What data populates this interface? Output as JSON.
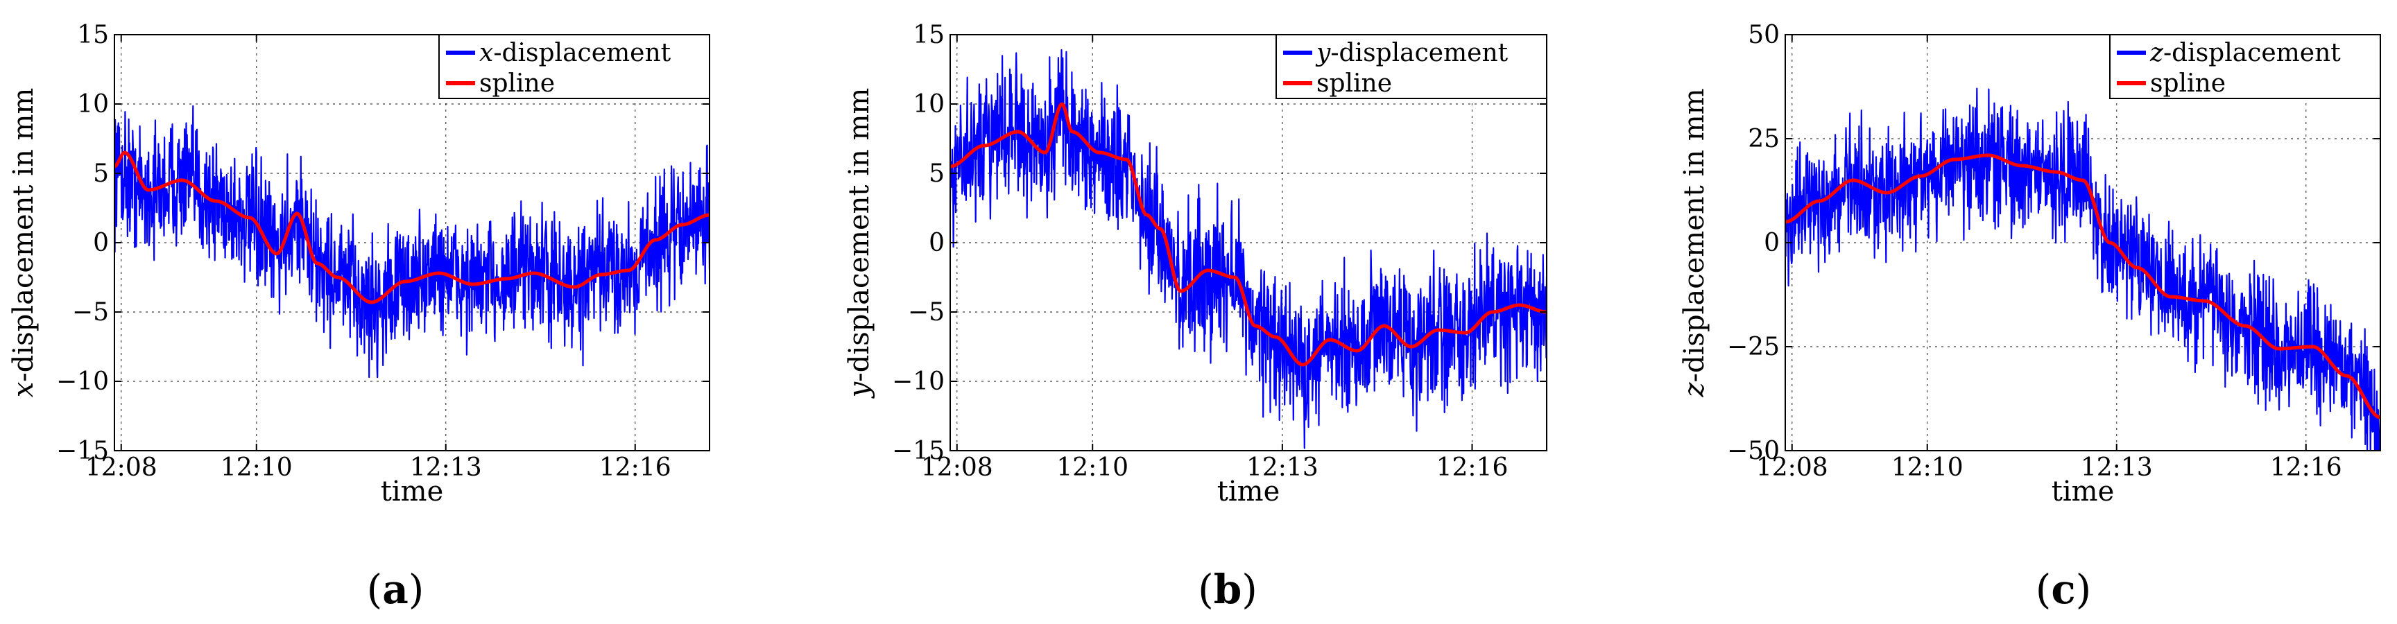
{
  "chart_data": [
    {
      "type": "line",
      "xlabel": "time",
      "ylabel": "x-displacement in mm",
      "ylabel_var": "x",
      "ylabel_rest": "-displacement in mm",
      "caption": "(a)",
      "caption_letter": "a",
      "x_ticks": [
        "12:08",
        "12:10",
        "12:13",
        "12:16"
      ],
      "x_tick_minutes": [
        0.1,
        2.1,
        4.9,
        7.7
      ],
      "xlim_minutes": [
        0,
        8.8
      ],
      "ylim": [
        -15,
        15
      ],
      "y_ticks": [
        15,
        10,
        5,
        0,
        -5,
        -10,
        -15
      ],
      "y_tick_labels": [
        "15",
        "10",
        "5",
        "0",
        "−5",
        "−10",
        "−15"
      ],
      "grid": true,
      "legend_position": "top-right",
      "series": [
        {
          "name": "x-displacement",
          "legend_var": "x",
          "legend_rest": "-displacement",
          "color": "#0000ff",
          "noise_amplitude": 2.2,
          "x_minutes": [
            0,
            0.5,
            1,
            1.5,
            2,
            2.4,
            2.7,
            3.0,
            3.3,
            3.8,
            4.3,
            4.8,
            5.3,
            5.8,
            6.2,
            6.8,
            7.2,
            7.6,
            8.0,
            8.4,
            8.8
          ],
          "values": [
            5.5,
            3.5,
            4.5,
            3,
            1.5,
            -0.5,
            2,
            -1.5,
            -2.5,
            -4.5,
            -3,
            -2,
            -3,
            -2.5,
            -2,
            -3.5,
            -2,
            -2,
            0,
            1,
            2
          ]
        },
        {
          "name": "spline",
          "color": "#ff0000",
          "x_minutes": [
            0,
            0.15,
            0.5,
            1,
            1.5,
            2,
            2.4,
            2.7,
            3.0,
            3.3,
            3.8,
            4.3,
            4.8,
            5.3,
            5.8,
            6.2,
            6.8,
            7.2,
            7.6,
            8.0,
            8.4,
            8.8
          ],
          "values": [
            5.5,
            6.5,
            3.8,
            4.5,
            3,
            1.8,
            -0.8,
            2.1,
            -1.5,
            -2.5,
            -4.3,
            -2.8,
            -2.2,
            -3,
            -2.6,
            -2.2,
            -3.2,
            -2.3,
            -2,
            0.2,
            1.3,
            2
          ]
        }
      ]
    },
    {
      "type": "line",
      "xlabel": "time",
      "ylabel": "y-displacement in mm",
      "ylabel_var": "y",
      "ylabel_rest": "-displacement in mm",
      "caption": "(b)",
      "caption_letter": "b",
      "x_ticks": [
        "12:08",
        "12:10",
        "12:13",
        "12:16"
      ],
      "x_tick_minutes": [
        0.1,
        2.1,
        4.9,
        7.7
      ],
      "xlim_minutes": [
        0,
        8.8
      ],
      "ylim": [
        -15,
        15
      ],
      "y_ticks": [
        15,
        10,
        5,
        0,
        -5,
        -10,
        -15
      ],
      "y_tick_labels": [
        "15",
        "10",
        "5",
        "0",
        "−5",
        "−10",
        "−15"
      ],
      "grid": true,
      "legend_position": "top-right",
      "series": [
        {
          "name": "y-displacement",
          "legend_var": "y",
          "legend_rest": "-displacement",
          "color": "#0000ff",
          "noise_amplitude": 2.4,
          "x_minutes": [
            0,
            0.5,
            1,
            1.4,
            1.6,
            1.8,
            2.2,
            2.6,
            2.9,
            3.1,
            3.4,
            3.8,
            4.2,
            4.5,
            4.8,
            5.2,
            5.6,
            6.0,
            6.4,
            6.8,
            7.2,
            7.6,
            8.0,
            8.4,
            8.8
          ],
          "values": [
            5.5,
            7,
            8,
            6.5,
            9.5,
            7.5,
            6.5,
            5.5,
            1.5,
            0.5,
            -3,
            -2,
            -2.5,
            -6,
            -7,
            -9,
            -7,
            -8,
            -6,
            -7.5,
            -6.5,
            -6.5,
            -5,
            -5,
            -5
          ]
        },
        {
          "name": "spline",
          "color": "#ff0000",
          "x_minutes": [
            0,
            0.5,
            1,
            1.4,
            1.65,
            1.8,
            2.2,
            2.6,
            2.9,
            3.1,
            3.4,
            3.8,
            4.2,
            4.5,
            4.8,
            5.2,
            5.6,
            6.0,
            6.4,
            6.8,
            7.2,
            7.6,
            8.0,
            8.4,
            8.8
          ],
          "values": [
            5.5,
            7,
            8,
            6.5,
            10,
            8,
            6.5,
            6,
            2,
            1,
            -3.5,
            -2,
            -2.5,
            -6,
            -6.8,
            -8.8,
            -7,
            -7.8,
            -6,
            -7.5,
            -6.3,
            -6.5,
            -5,
            -4.5,
            -5
          ]
        }
      ]
    },
    {
      "type": "line",
      "xlabel": "time",
      "ylabel": "z-displacement in mm",
      "ylabel_var": "z",
      "ylabel_rest": "-displacement in mm",
      "caption": "(c)",
      "caption_letter": "c",
      "x_ticks": [
        "12:08",
        "12:10",
        "12:13",
        "12:16"
      ],
      "x_tick_minutes": [
        0.1,
        2.1,
        4.9,
        7.7
      ],
      "xlim_minutes": [
        0,
        8.8
      ],
      "ylim": [
        -50,
        50
      ],
      "y_ticks": [
        50,
        25,
        0,
        -25,
        -50
      ],
      "y_tick_labels": [
        "50",
        "25",
        "0",
        "−25",
        "−50"
      ],
      "grid": true,
      "legend_position": "top-right",
      "series": [
        {
          "name": "z-displacement",
          "legend_var": "z",
          "legend_rest": "-displacement",
          "color": "#0000ff",
          "noise_amplitude": 7,
          "x_minutes": [
            0,
            0.5,
            1,
            1.5,
            2,
            2.5,
            3,
            3.5,
            4,
            4.4,
            4.8,
            5.2,
            5.7,
            6.2,
            6.8,
            7.3,
            7.8,
            8.3,
            8.8
          ],
          "values": [
            5,
            10,
            14,
            12,
            16,
            19,
            20,
            18,
            17,
            15,
            0,
            -6,
            -12,
            -14,
            -20,
            -25,
            -25,
            -30,
            -42
          ]
        },
        {
          "name": "spline",
          "color": "#ff0000",
          "x_minutes": [
            0,
            0.5,
            1,
            1.5,
            2,
            2.5,
            3,
            3.5,
            4,
            4.4,
            4.8,
            5.2,
            5.7,
            6.2,
            6.8,
            7.3,
            7.8,
            8.3,
            8.8
          ],
          "values": [
            5,
            10,
            15,
            12,
            16,
            20,
            21,
            18.5,
            17,
            15,
            0,
            -6,
            -13,
            -14,
            -20,
            -25.5,
            -25,
            -32,
            -42
          ]
        }
      ]
    }
  ]
}
